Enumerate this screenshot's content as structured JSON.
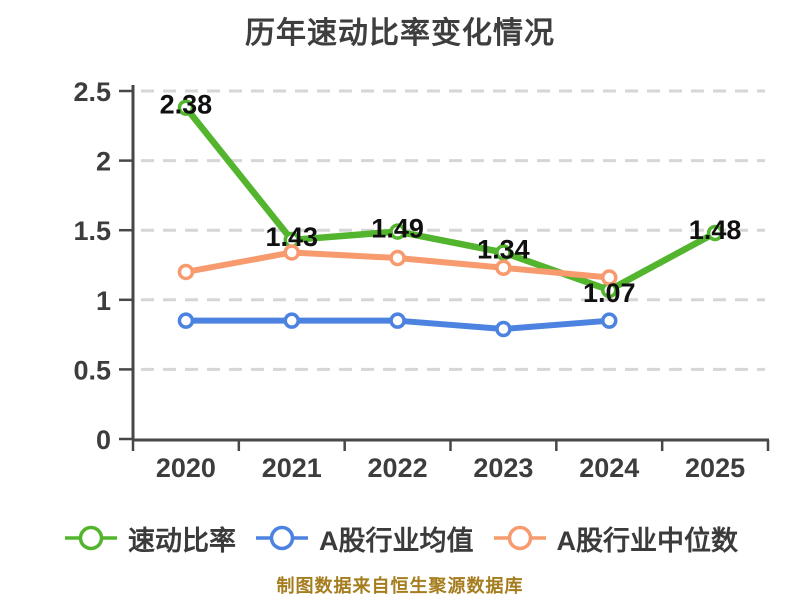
{
  "title": "历年速动比率变化情况",
  "source_note": "制图数据来自恒生聚源数据库",
  "colors": {
    "quick_ratio_green": "#53b52d",
    "industry_mean_blue": "#4c82e0",
    "industry_median_orange": "#f79a6e",
    "axis": "#474747",
    "grid": "#d6d6d6",
    "tick_label": "#3d3d3d",
    "data_label": "#101010",
    "title_text": "#3e3e3e",
    "source_text": "#a57d1e",
    "background": "#ffffff"
  },
  "chart_data": {
    "type": "line",
    "title": "历年速动比率变化情况",
    "categories": [
      "2020",
      "2021",
      "2022",
      "2023",
      "2024",
      "2025"
    ],
    "y_ticks": [
      0,
      0.5,
      1,
      1.5,
      2,
      2.5
    ],
    "ylim": [
      0,
      2.5
    ],
    "grid": "horizontal-dashed",
    "legend_position": "bottom",
    "marker_style": "white-filled-circle-colored-ring",
    "series": [
      {
        "id": "quick-ratio",
        "name": "速动比率",
        "color": "#53b52d",
        "values": [
          2.38,
          1.43,
          1.49,
          1.34,
          1.07,
          1.48
        ],
        "data_labels": [
          "2.38",
          "1.43",
          "1.49",
          "1.34",
          "1.07",
          "1.48"
        ]
      },
      {
        "id": "a-share-industry-mean",
        "name": "A股行业均值",
        "color": "#4c82e0",
        "values": [
          0.85,
          0.85,
          0.85,
          0.79,
          0.85
        ],
        "data_labels": null
      },
      {
        "id": "a-share-industry-median",
        "name": "A股行业中位数",
        "color": "#f79a6e",
        "values": [
          1.2,
          1.34,
          1.3,
          1.23,
          1.16
        ],
        "data_labels": null
      }
    ]
  }
}
